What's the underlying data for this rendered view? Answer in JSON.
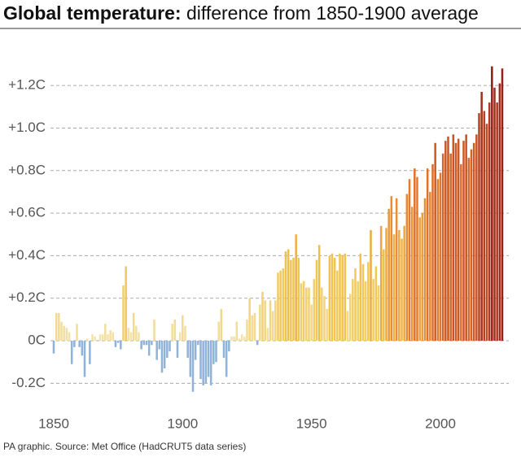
{
  "chart_data": {
    "type": "bar",
    "title": "Global temperature:",
    "subtitle": "difference from 1850-1900 average",
    "source": "PA graphic. Source: Met Office (HadCRUT5 data series)",
    "x": [
      1850,
      1851,
      1852,
      1853,
      1854,
      1855,
      1856,
      1857,
      1858,
      1859,
      1860,
      1861,
      1862,
      1863,
      1864,
      1865,
      1866,
      1867,
      1868,
      1869,
      1870,
      1871,
      1872,
      1873,
      1874,
      1875,
      1876,
      1877,
      1878,
      1879,
      1880,
      1881,
      1882,
      1883,
      1884,
      1885,
      1886,
      1887,
      1888,
      1889,
      1890,
      1891,
      1892,
      1893,
      1894,
      1895,
      1896,
      1897,
      1898,
      1899,
      1900,
      1901,
      1902,
      1903,
      1904,
      1905,
      1906,
      1907,
      1908,
      1909,
      1910,
      1911,
      1912,
      1913,
      1914,
      1915,
      1916,
      1917,
      1918,
      1919,
      1920,
      1921,
      1922,
      1923,
      1924,
      1925,
      1926,
      1927,
      1928,
      1929,
      1930,
      1931,
      1932,
      1933,
      1934,
      1935,
      1936,
      1937,
      1938,
      1939,
      1940,
      1941,
      1942,
      1943,
      1944,
      1945,
      1946,
      1947,
      1948,
      1949,
      1950,
      1951,
      1952,
      1953,
      1954,
      1955,
      1956,
      1957,
      1958,
      1959,
      1960,
      1961,
      1962,
      1963,
      1964,
      1965,
      1966,
      1967,
      1968,
      1969,
      1970,
      1971,
      1972,
      1973,
      1974,
      1975,
      1976,
      1977,
      1978,
      1979,
      1980,
      1981,
      1982,
      1983,
      1984,
      1985,
      1986,
      1987,
      1988,
      1989,
      1990,
      1991,
      1992,
      1993,
      1994,
      1995,
      1996,
      1997,
      1998,
      1999,
      2000,
      2001,
      2002,
      2003,
      2004,
      2005,
      2006,
      2007,
      2008,
      2009,
      2010,
      2011,
      2012,
      2013,
      2014,
      2015,
      2016,
      2017,
      2018,
      2019,
      2020,
      2021,
      2022,
      2023,
      2024
    ],
    "values": [
      -0.06,
      0.13,
      0.13,
      0.09,
      0.07,
      0.06,
      0.04,
      -0.11,
      -0.03,
      0.08,
      -0.03,
      -0.07,
      -0.17,
      0.01,
      -0.11,
      0.03,
      0.02,
      0.0,
      0.03,
      0.03,
      0.08,
      0.03,
      0.05,
      0.04,
      -0.03,
      -0.01,
      -0.04,
      0.26,
      0.35,
      0.06,
      0.04,
      0.13,
      0.07,
      0.04,
      -0.04,
      -0.02,
      -0.02,
      -0.07,
      -0.02,
      0.1,
      -0.09,
      -0.04,
      -0.15,
      -0.13,
      -0.08,
      -0.05,
      0.08,
      0.1,
      -0.08,
      0.04,
      0.12,
      0.07,
      -0.08,
      -0.17,
      -0.24,
      -0.09,
      -0.02,
      -0.18,
      -0.21,
      -0.2,
      -0.17,
      -0.21,
      -0.11,
      -0.1,
      0.09,
      0.15,
      -0.08,
      -0.17,
      -0.05,
      0.02,
      0.02,
      0.09,
      0.01,
      0.03,
      0.02,
      0.1,
      0.2,
      0.12,
      0.13,
      -0.02,
      0.17,
      0.23,
      0.19,
      0.06,
      0.19,
      0.14,
      0.19,
      0.32,
      0.33,
      0.34,
      0.42,
      0.43,
      0.38,
      0.39,
      0.5,
      0.39,
      0.27,
      0.28,
      0.25,
      0.25,
      0.17,
      0.29,
      0.38,
      0.45,
      0.25,
      0.21,
      0.15,
      0.4,
      0.41,
      0.39,
      0.33,
      0.41,
      0.4,
      0.41,
      0.14,
      0.22,
      0.29,
      0.34,
      0.28,
      0.41,
      0.36,
      0.28,
      0.37,
      0.52,
      0.29,
      0.35,
      0.26,
      0.54,
      0.43,
      0.53,
      0.62,
      0.68,
      0.5,
      0.67,
      0.52,
      0.48,
      0.54,
      0.69,
      0.76,
      0.63,
      0.81,
      0.77,
      0.58,
      0.6,
      0.67,
      0.81,
      0.7,
      0.83,
      0.93,
      0.76,
      0.79,
      0.88,
      0.94,
      0.96,
      0.88,
      0.97,
      0.93,
      0.95,
      0.83,
      0.94,
      0.97,
      0.86,
      0.9,
      0.93,
      0.97,
      1.07,
      1.17,
      1.08,
      1.02,
      1.12,
      1.29,
      1.19,
      1.12,
      1.21,
      1.28
    ],
    "negative_color": "#8fb3d9",
    "color_scale": [
      {
        "value": 0,
        "color": "#f3e4b0"
      },
      {
        "value": 0.4,
        "color": "#f0c54e"
      },
      {
        "value": 0.8,
        "color": "#e5732a"
      },
      {
        "value": 1.3,
        "color": "#8e1b1b"
      }
    ],
    "xlim": [
      1850,
      2024
    ],
    "xticks": [
      1850,
      1900,
      1950,
      2000
    ],
    "ylim": [
      -0.3,
      1.3
    ],
    "yticks": [
      {
        "value": -0.2,
        "label": "-0.2C"
      },
      {
        "value": 0,
        "label": "0C"
      },
      {
        "value": 0.2,
        "label": "+0.2C"
      },
      {
        "value": 0.4,
        "label": "+0.4C"
      },
      {
        "value": 0.6,
        "label": "+0.6C"
      },
      {
        "value": 0.8,
        "label": "+0.8C"
      },
      {
        "value": 1.0,
        "label": "+1.0C"
      },
      {
        "value": 1.2,
        "label": "+1.2C"
      }
    ],
    "grid": true
  }
}
